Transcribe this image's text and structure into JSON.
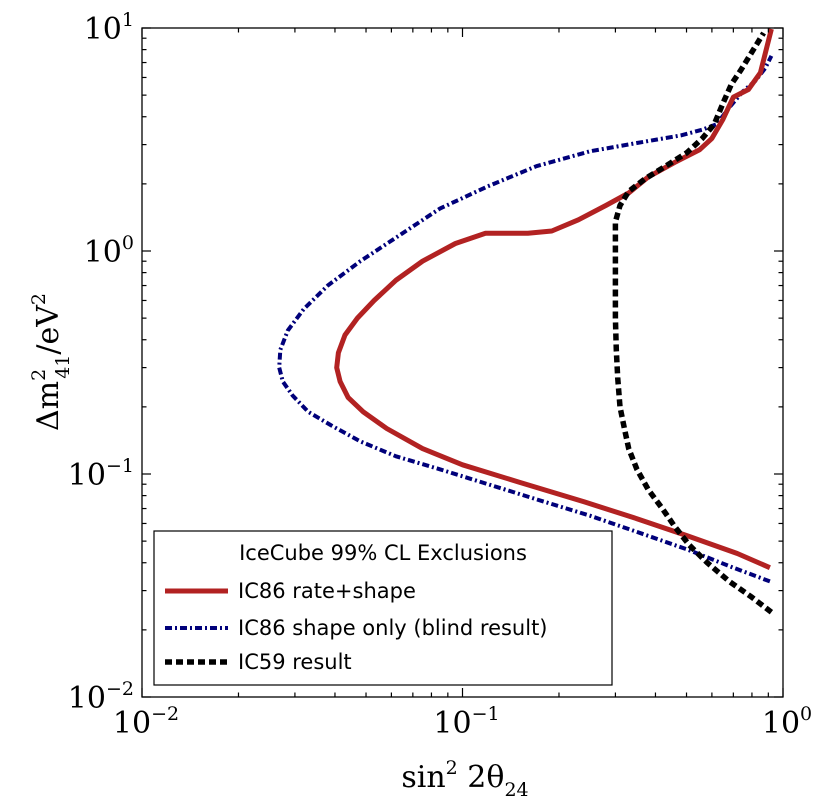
{
  "chart_data": {
    "type": "line",
    "title": "",
    "xscale": "log",
    "yscale": "log",
    "xlim": [
      0.01,
      1.0
    ],
    "ylim": [
      0.01,
      10
    ],
    "xlabel": {
      "base": "sin",
      "sup": "2",
      "rest": " 2θ",
      "sub": "24"
    },
    "ylabel": {
      "pre": "Δm",
      "sup": "2",
      "sub": "41",
      "mid": "/eV",
      "sup2": "2"
    },
    "xticks": [
      {
        "value": 0.01,
        "base": "10",
        "exp": "−2"
      },
      {
        "value": 0.1,
        "base": "10",
        "exp": "−1"
      },
      {
        "value": 1.0,
        "base": "10",
        "exp": "0"
      }
    ],
    "yticks": [
      {
        "value": 0.01,
        "base": "10",
        "exp": "−2"
      },
      {
        "value": 0.1,
        "base": "10",
        "exp": "−1"
      },
      {
        "value": 1.0,
        "base": "10",
        "exp": "0"
      },
      {
        "value": 10,
        "base": "10",
        "exp": "1"
      }
    ],
    "legend": {
      "title": "IceCube 99% CL Exclusions",
      "location": "lower-left"
    },
    "series": [
      {
        "name": "IC86 rate+shape",
        "color": "#b22222",
        "style": "solid",
        "x": [
          0.91,
          0.72,
          0.5,
          0.35,
          0.24,
          0.15,
          0.1,
          0.075,
          0.058,
          0.049,
          0.044,
          0.0415,
          0.0405,
          0.041,
          0.043,
          0.047,
          0.053,
          0.062,
          0.075,
          0.095,
          0.118,
          0.13,
          0.16,
          0.19,
          0.23,
          0.28,
          0.33,
          0.38,
          0.46,
          0.55,
          0.6,
          0.65,
          0.7,
          0.78,
          0.85,
          0.92
        ],
        "y": [
          0.038,
          0.044,
          0.053,
          0.063,
          0.075,
          0.092,
          0.11,
          0.13,
          0.16,
          0.19,
          0.22,
          0.26,
          0.3,
          0.35,
          0.42,
          0.5,
          0.6,
          0.74,
          0.9,
          1.08,
          1.2,
          1.2,
          1.2,
          1.23,
          1.38,
          1.6,
          1.82,
          2.15,
          2.5,
          2.85,
          3.2,
          3.9,
          4.9,
          5.3,
          6.3,
          9.9
        ]
      },
      {
        "name": "IC86 shape only (blind result)",
        "color": "#00007a",
        "style": "dashdot",
        "x": [
          0.91,
          0.7,
          0.5,
          0.35,
          0.25,
          0.17,
          0.12,
          0.085,
          0.062,
          0.048,
          0.039,
          0.033,
          0.0295,
          0.0275,
          0.0268,
          0.027,
          0.0285,
          0.032,
          0.038,
          0.048,
          0.065,
          0.085,
          0.12,
          0.17,
          0.25,
          0.35,
          0.48,
          0.56,
          0.62,
          0.68,
          0.75,
          0.82,
          0.88,
          0.92
        ],
        "y": [
          0.033,
          0.038,
          0.046,
          0.055,
          0.065,
          0.077,
          0.09,
          0.105,
          0.12,
          0.14,
          0.165,
          0.19,
          0.225,
          0.26,
          0.3,
          0.36,
          0.44,
          0.55,
          0.7,
          0.9,
          1.2,
          1.55,
          1.95,
          2.4,
          2.8,
          3.05,
          3.3,
          3.5,
          3.7,
          4.4,
          5.2,
          5.8,
          6.6,
          7.5
        ]
      },
      {
        "name": "IC59 result",
        "color": "#000000",
        "style": "dashed",
        "x": [
          0.92,
          0.8,
          0.68,
          0.58,
          0.51,
          0.46,
          0.42,
          0.38,
          0.35,
          0.33,
          0.32,
          0.31,
          0.305,
          0.302,
          0.3,
          0.3,
          0.3,
          0.3,
          0.31,
          0.33,
          0.37,
          0.43,
          0.5,
          0.56,
          0.61,
          0.65,
          0.69,
          0.74,
          0.8,
          0.87
        ],
        "y": [
          0.024,
          0.028,
          0.033,
          0.04,
          0.048,
          0.058,
          0.07,
          0.085,
          0.105,
          0.13,
          0.16,
          0.2,
          0.27,
          0.36,
          0.5,
          0.7,
          0.95,
          1.35,
          1.6,
          1.85,
          2.1,
          2.4,
          2.75,
          3.2,
          3.7,
          4.6,
          5.6,
          6.5,
          7.8,
          9.5
        ]
      }
    ]
  }
}
